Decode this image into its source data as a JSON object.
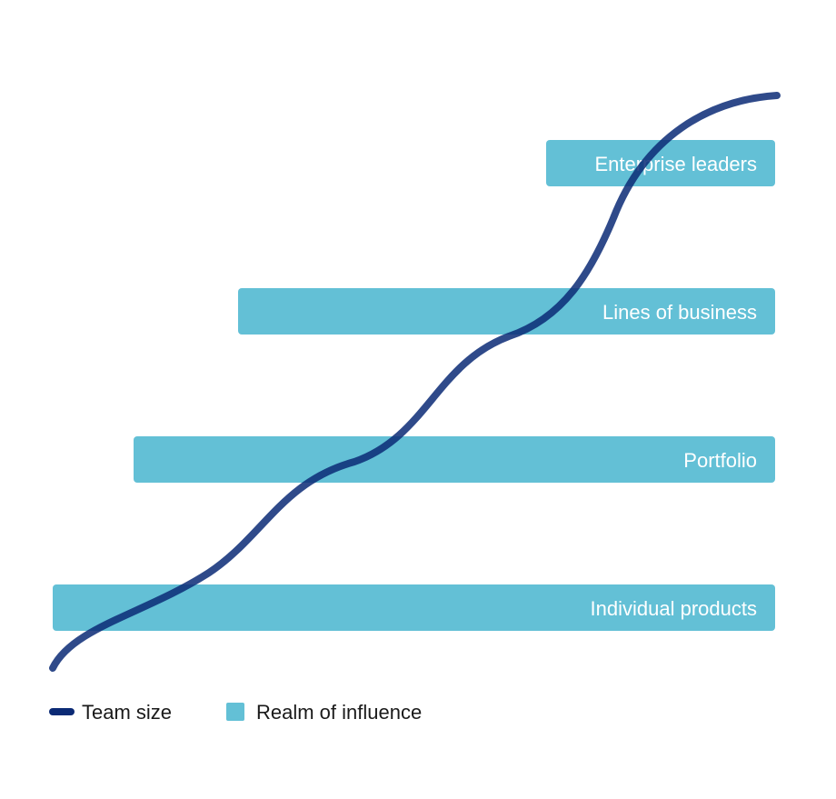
{
  "colors": {
    "band": "#63C0D6",
    "curve": "#0B2A75",
    "background": "#ffffff"
  },
  "bands": [
    {
      "label": "Enterprise leaders"
    },
    {
      "label": "Lines of business"
    },
    {
      "label": "Portfolio"
    },
    {
      "label": "Individual products"
    }
  ],
  "legend": {
    "team_size_label": "Team size",
    "realm_label": "Realm of influence"
  }
}
